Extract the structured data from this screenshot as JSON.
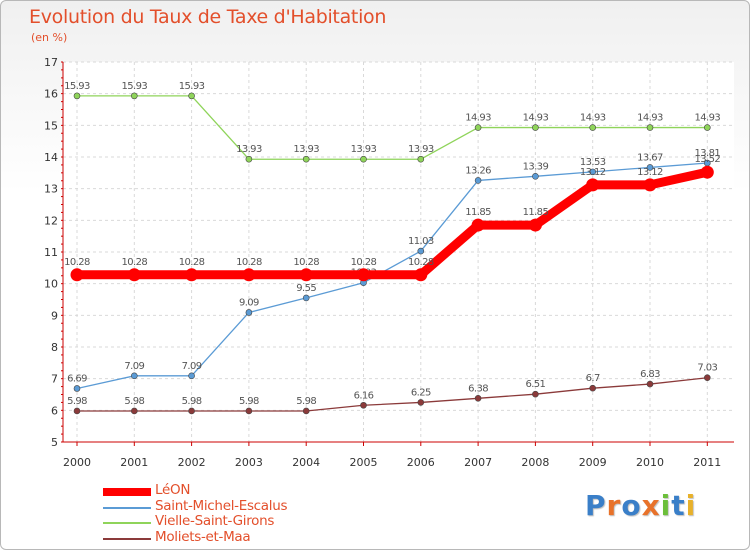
{
  "title": "Evolution du Taux de Taxe d'Habitation",
  "unit": "(en %)",
  "chart_data": {
    "type": "line",
    "x": [
      "2000",
      "2001",
      "2002",
      "2003",
      "2004",
      "2005",
      "2006",
      "2007",
      "2008",
      "2009",
      "2010",
      "2011"
    ],
    "ylim": [
      5,
      17
    ],
    "yticks": [
      "5",
      "6",
      "7",
      "8",
      "9",
      "10",
      "11",
      "12",
      "13",
      "14",
      "15",
      "16",
      "17"
    ],
    "grid": true,
    "series": [
      {
        "name": "LéON",
        "color": "#ff0000",
        "values": [
          10.28,
          10.28,
          10.28,
          10.28,
          10.28,
          10.28,
          10.28,
          11.85,
          11.85,
          13.12,
          13.12,
          13.52
        ],
        "labels": [
          "10.28",
          "10.28",
          "10.28",
          "10.28",
          "10.28",
          "10.28",
          "10.28",
          "11.85",
          "11.85",
          "13.12",
          "13.12",
          "13.52"
        ]
      },
      {
        "name": "Saint-Michel-Escalus",
        "color": "#5b9bd5",
        "values": [
          6.69,
          7.09,
          7.09,
          9.09,
          9.55,
          10.03,
          11.03,
          13.26,
          13.39,
          13.53,
          13.67,
          13.81
        ],
        "labels": [
          "6.69",
          "7.09",
          "7.09",
          "9.09",
          "9.55",
          "10.03",
          "11.03",
          "13.26",
          "13.39",
          "13.53",
          "13.67",
          "13.81"
        ]
      },
      {
        "name": "Vielle-Saint-Girons",
        "color": "#8fd45a",
        "values": [
          15.93,
          15.93,
          15.93,
          13.93,
          13.93,
          13.93,
          13.93,
          14.93,
          14.93,
          14.93,
          14.93,
          14.93
        ],
        "labels": [
          "15.93",
          "15.93",
          "15.93",
          "13.93",
          "13.93",
          "13.93",
          "13.93",
          "14.93",
          "14.93",
          "14.93",
          "14.93",
          "14.93"
        ]
      },
      {
        "name": "Moliets-et-Maa",
        "color": "#8b3a3a",
        "values": [
          5.98,
          5.98,
          5.98,
          5.98,
          5.98,
          6.16,
          6.25,
          6.38,
          6.51,
          6.7,
          6.83,
          7.03
        ],
        "labels": [
          "5.98",
          "5.98",
          "5.98",
          "5.98",
          "5.98",
          "6.16",
          "6.25",
          "6.38",
          "6.51",
          "6.7",
          "6.83",
          "7.03"
        ]
      }
    ]
  },
  "logo": {
    "letters": [
      "P",
      "r",
      "o",
      "x",
      "i",
      "t",
      "i"
    ],
    "colors": [
      "#3a7fc8",
      "#e8722a",
      "#3a7fc8",
      "#e8722a",
      "#6cbf3a",
      "#3a7fc8",
      "#e8b12a"
    ]
  }
}
